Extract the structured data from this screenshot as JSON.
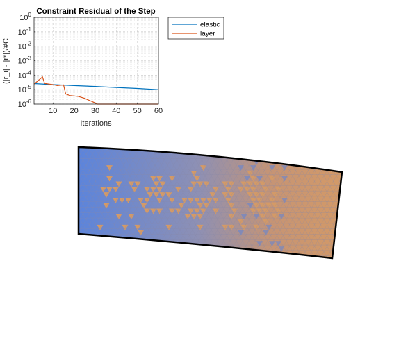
{
  "chart_data": {
    "type": "line",
    "title": "Constraint Residual of the Step",
    "xlabel": "Iterations",
    "ylabel": "(|r_i| - |r*|)/#C",
    "x_scale": "linear",
    "y_scale": "log",
    "xlim": [
      1,
      60
    ],
    "ylim": [
      1e-06,
      1
    ],
    "grid": true,
    "minor_grid": true,
    "x_ticks": [
      10,
      20,
      30,
      40,
      50,
      60
    ],
    "y_ticks": [
      {
        "value": 1e-06,
        "base": "10",
        "exp": "-6"
      },
      {
        "value": 1e-05,
        "base": "10",
        "exp": "-5"
      },
      {
        "value": 0.0001,
        "base": "10",
        "exp": "-4"
      },
      {
        "value": 0.001,
        "base": "10",
        "exp": "-3"
      },
      {
        "value": 0.01,
        "base": "10",
        "exp": "-2"
      },
      {
        "value": 0.1,
        "base": "10",
        "exp": "-1"
      },
      {
        "value": 1,
        "base": "10",
        "exp": "0"
      }
    ],
    "legend_position": "outside-right",
    "series": [
      {
        "name": "elastic",
        "color": "#0072BD",
        "points": [
          [
            1,
            2.6e-05
          ],
          [
            10,
            2.2e-05
          ],
          [
            20,
            1.9e-05
          ],
          [
            30,
            1.65e-05
          ],
          [
            40,
            1.4e-05
          ],
          [
            50,
            1.2e-05
          ],
          [
            60,
            1e-05
          ]
        ]
      },
      {
        "name": "layer",
        "color": "#D95319",
        "points": [
          [
            1,
            2.4e-05
          ],
          [
            5,
            7.5e-05
          ],
          [
            6,
            2.7e-05
          ],
          [
            10,
            2.2e-05
          ],
          [
            12,
            1.9e-05
          ],
          [
            15,
            2.1e-05
          ],
          [
            16,
            5e-06
          ],
          [
            18,
            3.9e-06
          ],
          [
            22,
            3.4e-06
          ],
          [
            25,
            2.5e-06
          ],
          [
            30,
            1.2e-06
          ],
          [
            31,
            1e-06
          ],
          [
            60,
            1e-06
          ]
        ]
      }
    ]
  },
  "mesh": {
    "outline_color": "#000000",
    "left_fill": "#5b84dc",
    "right_fill": "#d49a66",
    "edge_color": "#8a8aa8"
  }
}
